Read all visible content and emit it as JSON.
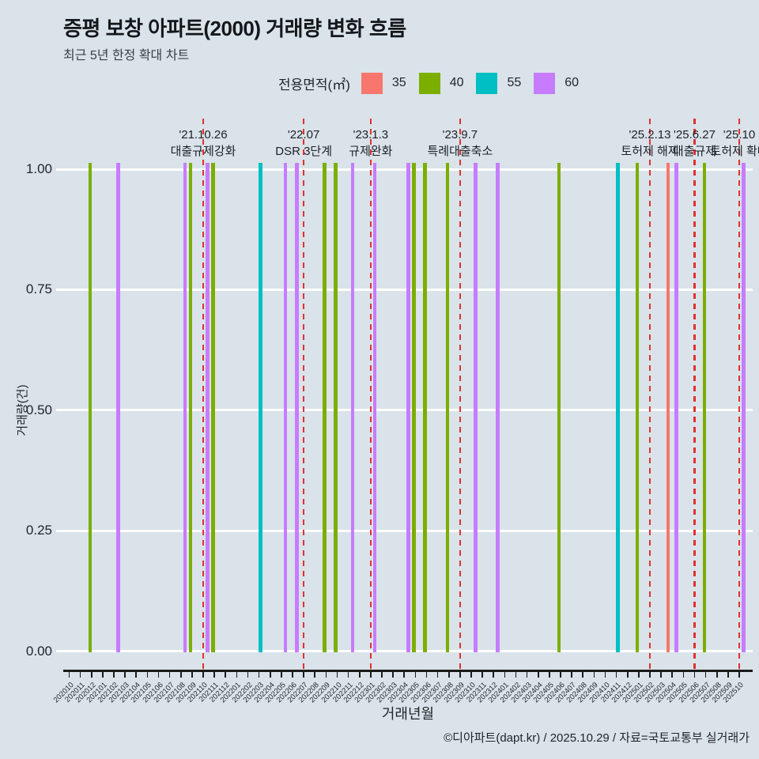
{
  "title": "증평 보창 아파트(2000) 거래량 변화 흐름",
  "subtitle": "최근 5년 한정 확대 차트",
  "legend": {
    "label": "전용면적(㎡)",
    "items": [
      {
        "label": "35",
        "color": "#F8766D"
      },
      {
        "label": "40",
        "color": "#7CAE00"
      },
      {
        "label": "55",
        "color": "#00BFC4"
      },
      {
        "label": "60",
        "color": "#C77CFF"
      }
    ]
  },
  "chart_data": {
    "type": "bar",
    "title": "증평 보창 아파트(2000) 거래량 변화 흐름",
    "xlabel": "거래년월",
    "ylabel": "거래량(건)",
    "ylim": [
      0,
      1
    ],
    "ytick_labels": [
      "0.00",
      "0.25",
      "0.50",
      "0.75",
      "1.00"
    ],
    "ytick_values": [
      0,
      0.25,
      0.5,
      0.75,
      1
    ],
    "grid": "horizontal-major-white",
    "legend_position": "top",
    "x_categories": [
      "202010",
      "202011",
      "202012",
      "202101",
      "202102",
      "202103",
      "202104",
      "202105",
      "202106",
      "202107",
      "202108",
      "202109",
      "202110",
      "202111",
      "202112",
      "202201",
      "202202",
      "202203",
      "202204",
      "202205",
      "202206",
      "202207",
      "202208",
      "202209",
      "202210",
      "202211",
      "202212",
      "202301",
      "202302",
      "202303",
      "202304",
      "202305",
      "202306",
      "202307",
      "202308",
      "202309",
      "202310",
      "202311",
      "202312",
      "202401",
      "202402",
      "202403",
      "202404",
      "202405",
      "202406",
      "202407",
      "202408",
      "202409",
      "202410",
      "202411",
      "202412",
      "202501",
      "202502",
      "202503",
      "202504",
      "202505",
      "202506",
      "202507",
      "202508",
      "202509",
      "202510"
    ],
    "series": [
      {
        "name": "35",
        "color": "#F8766D",
        "points": [
          {
            "x": "202504",
            "y": 1
          }
        ]
      },
      {
        "name": "40",
        "color": "#7CAE00",
        "points": [
          {
            "x": "202012",
            "y": 1
          },
          {
            "x": "202109",
            "y": 1
          },
          {
            "x": "202111",
            "y": 1
          },
          {
            "x": "202209",
            "y": 1
          },
          {
            "x": "202210",
            "y": 1
          },
          {
            "x": "202305",
            "y": 1
          },
          {
            "x": "202306",
            "y": 1
          },
          {
            "x": "202308",
            "y": 1
          },
          {
            "x": "202406",
            "y": 1
          },
          {
            "x": "202501",
            "y": 1
          },
          {
            "x": "202507",
            "y": 1
          }
        ]
      },
      {
        "name": "55",
        "color": "#00BFC4",
        "points": [
          {
            "x": "202203",
            "y": 1
          },
          {
            "x": "202411",
            "y": 1
          }
        ]
      },
      {
        "name": "60",
        "color": "#C77CFF",
        "points": [
          {
            "x": "202102",
            "y": 1
          },
          {
            "x": "202108",
            "y": 1
          },
          {
            "x": "202110",
            "y": 1
          },
          {
            "x": "202205",
            "y": 1
          },
          {
            "x": "202206",
            "y": 1
          },
          {
            "x": "202211",
            "y": 1
          },
          {
            "x": "202301",
            "y": 1
          },
          {
            "x": "202304",
            "y": 1
          },
          {
            "x": "202310",
            "y": 1
          },
          {
            "x": "202312",
            "y": 1
          },
          {
            "x": "202504",
            "y": 1
          },
          {
            "x": "202510",
            "y": 1
          }
        ]
      }
    ],
    "annotations": [
      {
        "x": "202110",
        "date": "'21.10.26",
        "label": "대출규제강화"
      },
      {
        "x": "202207",
        "date": "'22.07",
        "label": "DSR 3단계"
      },
      {
        "x": "202301",
        "date": "'23.1.3",
        "label": "규제완화"
      },
      {
        "x": "202309",
        "date": "'23.9.7",
        "label": "특례대출축소"
      },
      {
        "x": "202502",
        "date": "'25.2.13",
        "label": "토허제 해제"
      },
      {
        "x": "202506",
        "date": "'25.6.27",
        "label": "대출규제"
      },
      {
        "x": "202510",
        "date": "'25.10",
        "label": "토허제 확대"
      }
    ]
  },
  "footer": "©디아파트(dapt.kr) / 2025.10.29 / 자료=국토교통부 실거래가",
  "colors": {
    "background": "#d9e3e9",
    "grid": "#ffffff",
    "axis": "#1a1a1a",
    "event_line": "#e03131",
    "text": "#22262a"
  }
}
